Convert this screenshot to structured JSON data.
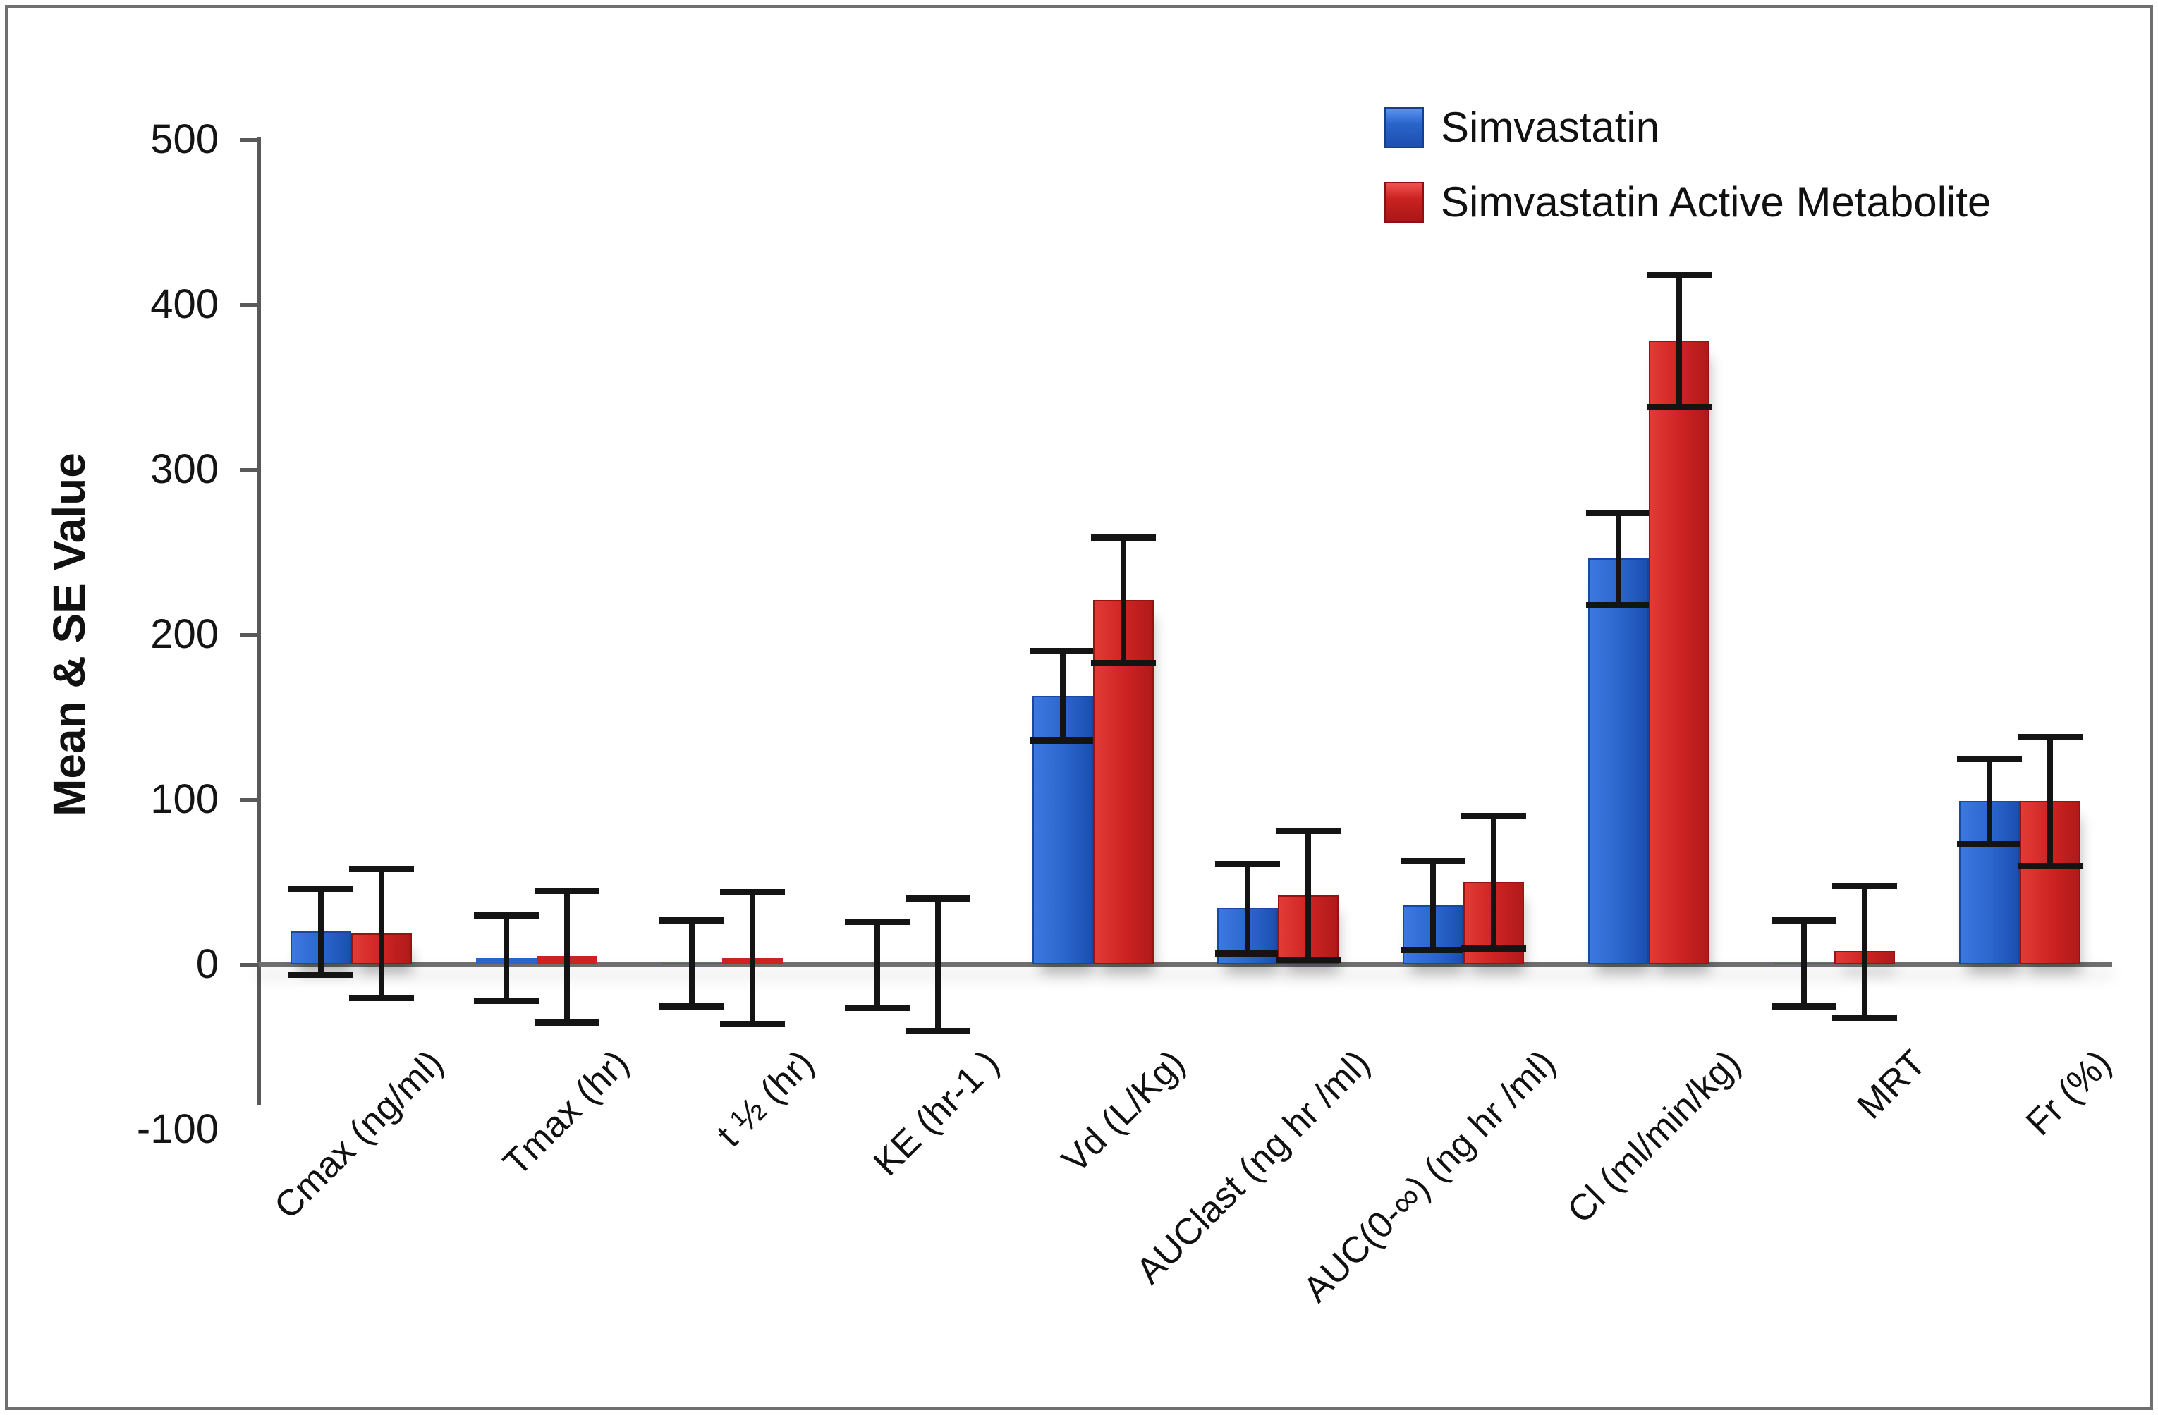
{
  "chart_data": {
    "type": "bar",
    "title": "",
    "ylabel": "Mean & SE Value",
    "xlabel": "",
    "ylim": [
      -100,
      500
    ],
    "ytick_interval": 100,
    "yticks": [
      500,
      400,
      300,
      200,
      100,
      0,
      -100
    ],
    "grid": false,
    "legend_position": "top-right",
    "error_bars": true,
    "categories": [
      "Cmax (ng/ml)",
      "Tmax (hr)",
      "t ½ (hr)",
      "KE (hr-1 )",
      "Vd (L/Kg)",
      "AUClast (ng hr /ml)",
      "AUC(0-∞) (ng hr /ml)",
      "Cl (ml/min/kg)",
      "MRT",
      "Fr (%)"
    ],
    "series": [
      {
        "name": "Simvastatin",
        "color": "#2A65CC",
        "means": [
          20,
          4,
          1,
          0,
          163,
          34,
          36,
          246,
          1,
          99
        ],
        "se": [
          26,
          26,
          26,
          26,
          27,
          27,
          27,
          28,
          26,
          26
        ]
      },
      {
        "name": "Simvastatin Active Metabolite",
        "color": "#CC2222",
        "means": [
          19,
          5,
          4,
          0,
          221,
          42,
          50,
          378,
          8,
          99
        ],
        "se": [
          39,
          40,
          40,
          40,
          38,
          39,
          40,
          40,
          40,
          39
        ]
      }
    ],
    "colors": {
      "error_bar": "#141414",
      "axis_line": "#595959",
      "baseline": "#6E6E6E",
      "frame_border": "#6F6F6F"
    }
  }
}
